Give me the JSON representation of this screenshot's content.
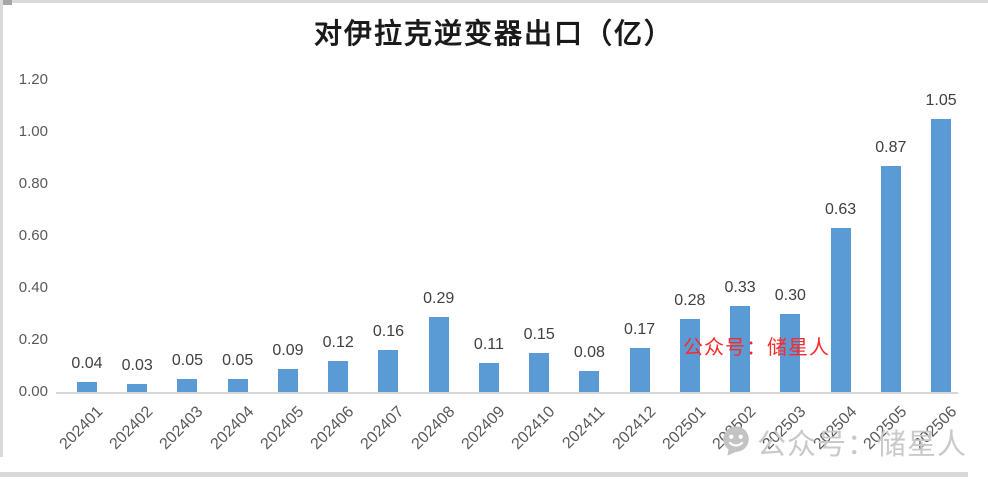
{
  "chart_data": {
    "type": "bar",
    "title": "对伊拉克逆变器出口（亿）",
    "categories": [
      "202401",
      "202402",
      "202403",
      "202404",
      "202405",
      "202406",
      "202407",
      "202408",
      "202409",
      "202410",
      "202411",
      "202412",
      "202501",
      "202502",
      "202503",
      "202504",
      "202505",
      "202506"
    ],
    "values": [
      0.04,
      0.03,
      0.05,
      0.05,
      0.09,
      0.12,
      0.16,
      0.29,
      0.11,
      0.15,
      0.08,
      0.17,
      0.28,
      0.33,
      0.3,
      0.63,
      0.87,
      1.05
    ],
    "data_labels": [
      "0.04",
      "0.03",
      "0.05",
      "0.05",
      "0.09",
      "0.12",
      "0.16",
      "0.29",
      "0.11",
      "0.15",
      "0.08",
      "0.17",
      "0.28",
      "0.33",
      "0.30",
      "0.63",
      "0.87",
      "1.05"
    ],
    "yticks": [
      "0.00",
      "0.20",
      "0.40",
      "0.60",
      "0.80",
      "1.00",
      "1.20"
    ],
    "ylim": [
      0,
      1.2
    ],
    "ytick_step": 0.2,
    "xlabel": "",
    "ylabel": "",
    "bar_color": "#5b9bd5",
    "axis_color": "#d6d6d6",
    "tick_label_color": "#595959",
    "data_label_color": "#404040",
    "gridlines": false,
    "legend": "none"
  },
  "watermarks": {
    "red_text": "公众号：储星人",
    "red_color": "#fa2a2a",
    "gray_text": "公众号：储星人",
    "gray_color": "#c9c9c9",
    "icon": "wechat-icon"
  }
}
